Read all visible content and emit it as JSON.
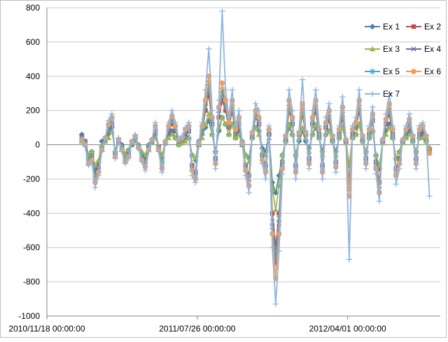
{
  "chart_data": {
    "type": "line",
    "title": "",
    "xlabel": "",
    "ylabel": "",
    "ylim": [
      -1000,
      800
    ],
    "yticks": [
      800,
      600,
      400,
      200,
      0,
      -200,
      -400,
      -600,
      -800,
      -1000
    ],
    "xlim": [
      "2010/11/18 00:00:00",
      "2012/09/02 00:00:00"
    ],
    "xticks": [
      "2010/11/18 00:00:00",
      "2011/07/26 00:00:00",
      "2012/04/01 00:00:00"
    ],
    "grid": "horizontal",
    "legend_position": "top-right",
    "x_start": "2011/01/15 00:00:00",
    "x_end": "2012/08/15 00:00:00",
    "series": [
      {
        "name": "Ex 1",
        "color": "#4a7ebb",
        "marker": "diamond",
        "values": [
          60,
          20,
          -60,
          -40,
          -150,
          -100,
          20,
          40,
          60,
          100,
          -40,
          30,
          0,
          -60,
          -30,
          20,
          40,
          0,
          -50,
          -80,
          0,
          30,
          60,
          -20,
          -80,
          20,
          60,
          80,
          40,
          0,
          10,
          30,
          40,
          -60,
          -90,
          20,
          60,
          100,
          140,
          60,
          -40,
          80,
          160,
          120,
          60,
          120,
          40,
          80,
          20,
          -60,
          -80,
          40,
          100,
          80,
          -20,
          -40,
          60,
          -220,
          -280,
          -180,
          -60,
          20,
          100,
          60,
          -60,
          20,
          80,
          20,
          -20,
          60,
          100,
          40,
          -40,
          60,
          80,
          20,
          -40,
          40,
          100,
          20,
          -120,
          40,
          60,
          120,
          20,
          -40,
          40,
          80,
          -60,
          -140,
          20,
          80,
          120,
          40,
          -80,
          -40,
          20,
          40,
          80,
          20,
          -40,
          40,
          60,
          20,
          -20
        ]
      },
      {
        "name": "Ex 2",
        "color": "#be4b48",
        "marker": "square",
        "values": [
          40,
          10,
          -80,
          -60,
          -180,
          -130,
          -20,
          20,
          80,
          120,
          -60,
          20,
          -20,
          -80,
          -50,
          0,
          30,
          -10,
          -70,
          -100,
          -10,
          20,
          80,
          -10,
          -100,
          10,
          80,
          120,
          80,
          20,
          30,
          60,
          80,
          -120,
          -160,
          0,
          80,
          200,
          300,
          120,
          -80,
          160,
          260,
          200,
          100,
          200,
          60,
          120,
          0,
          -120,
          -180,
          60,
          160,
          120,
          -60,
          -120,
          60,
          -400,
          -600,
          -400,
          -100,
          40,
          200,
          120,
          -120,
          60,
          180,
          60,
          -80,
          120,
          200,
          60,
          -120,
          100,
          140,
          40,
          -100,
          60,
          160,
          20,
          -220,
          60,
          100,
          200,
          40,
          -80,
          60,
          140,
          -100,
          -220,
          20,
          120,
          180,
          60,
          -140,
          -80,
          20,
          60,
          120,
          40,
          -80,
          60,
          80,
          40,
          -40
        ]
      },
      {
        "name": "Ex 3",
        "color": "#98b954",
        "marker": "triangle",
        "values": [
          20,
          0,
          -60,
          -40,
          -120,
          -90,
          0,
          20,
          40,
          80,
          -30,
          10,
          -10,
          -50,
          -30,
          10,
          20,
          0,
          -40,
          -60,
          0,
          10,
          40,
          -10,
          -60,
          10,
          40,
          60,
          40,
          0,
          10,
          20,
          40,
          -60,
          -80,
          0,
          40,
          120,
          180,
          60,
          -40,
          100,
          160,
          120,
          60,
          120,
          40,
          60,
          0,
          -60,
          -100,
          40,
          100,
          60,
          -40,
          -60,
          40,
          -260,
          -380,
          -240,
          -60,
          20,
          120,
          60,
          -60,
          40,
          100,
          40,
          -40,
          60,
          120,
          40,
          -60,
          60,
          80,
          20,
          -60,
          40,
          100,
          10,
          -120,
          40,
          60,
          120,
          20,
          -40,
          40,
          80,
          -60,
          -120,
          10,
          60,
          100,
          40,
          -80,
          -40,
          10,
          40,
          60,
          20,
          -40,
          40,
          40,
          20,
          -20
        ]
      },
      {
        "name": "Ex 4",
        "color": "#7d60a0",
        "marker": "x",
        "values": [
          50,
          20,
          -100,
          -80,
          -200,
          -150,
          -30,
          30,
          100,
          140,
          -60,
          30,
          -20,
          -90,
          -60,
          10,
          40,
          -10,
          -80,
          -120,
          -20,
          20,
          100,
          -20,
          -120,
          10,
          100,
          160,
          100,
          20,
          40,
          80,
          100,
          -140,
          -180,
          0,
          100,
          240,
          360,
          140,
          -100,
          200,
          320,
          240,
          120,
          240,
          80,
          140,
          0,
          -140,
          -220,
          60,
          180,
          140,
          -80,
          -140,
          80,
          -480,
          -700,
          -460,
          -120,
          40,
          240,
          140,
          -140,
          60,
          220,
          60,
          -100,
          140,
          240,
          80,
          -140,
          120,
          180,
          40,
          -120,
          80,
          200,
          20,
          -260,
          80,
          120,
          240,
          40,
          -100,
          80,
          160,
          -120,
          -260,
          20,
          140,
          220,
          80,
          -160,
          -100,
          20,
          80,
          140,
          40,
          -100,
          80,
          100,
          40,
          -40
        ]
      },
      {
        "name": "Ex 5",
        "color": "#46aac5",
        "marker": "star",
        "values": [
          40,
          10,
          -90,
          -70,
          -190,
          -140,
          -20,
          30,
          90,
          130,
          -60,
          20,
          -20,
          -80,
          -50,
          10,
          30,
          -10,
          -70,
          -110,
          -10,
          20,
          90,
          -20,
          -110,
          10,
          90,
          140,
          90,
          20,
          30,
          70,
          90,
          -130,
          -170,
          0,
          90,
          220,
          340,
          130,
          -90,
          180,
          300,
          220,
          110,
          220,
          70,
          130,
          0,
          -130,
          -200,
          60,
          170,
          130,
          -70,
          -130,
          70,
          -450,
          -660,
          -430,
          -110,
          40,
          220,
          130,
          -130,
          60,
          200,
          60,
          -90,
          130,
          220,
          70,
          -130,
          110,
          160,
          40,
          -110,
          70,
          180,
          20,
          -240,
          70,
          110,
          220,
          40,
          -90,
          70,
          150,
          -110,
          -240,
          20,
          130,
          200,
          70,
          -150,
          -90,
          20,
          70,
          130,
          40,
          -90,
          70,
          90,
          40,
          -40
        ]
      },
      {
        "name": "Ex 6",
        "color": "#f59d56",
        "marker": "circle",
        "values": [
          30,
          0,
          -110,
          -90,
          -220,
          -160,
          -30,
          40,
          120,
          160,
          -70,
          30,
          -30,
          -100,
          -70,
          20,
          50,
          -20,
          -90,
          -130,
          -30,
          30,
          110,
          -30,
          -140,
          20,
          110,
          170,
          110,
          30,
          40,
          90,
          110,
          -150,
          -200,
          10,
          110,
          260,
          400,
          160,
          -110,
          220,
          360,
          260,
          130,
          260,
          90,
          160,
          10,
          -150,
          -240,
          70,
          200,
          160,
          -90,
          -160,
          90,
          -520,
          -780,
          -520,
          -140,
          50,
          260,
          160,
          -160,
          70,
          240,
          70,
          -110,
          160,
          260,
          90,
          -160,
          130,
          200,
          50,
          -130,
          90,
          220,
          30,
          -300,
          90,
          130,
          260,
          50,
          -110,
          90,
          180,
          -140,
          -280,
          30,
          150,
          240,
          90,
          -180,
          -110,
          30,
          90,
          150,
          50,
          -110,
          90,
          110,
          50,
          -50
        ]
      },
      {
        "name": "Ex 7",
        "color": "#8eb4e3",
        "marker": "plus",
        "values": [
          20,
          -10,
          -120,
          -100,
          -250,
          -180,
          -40,
          40,
          140,
          180,
          -80,
          40,
          -40,
          -110,
          -80,
          20,
          60,
          -20,
          -100,
          -150,
          -40,
          30,
          130,
          -40,
          -160,
          20,
          130,
          200,
          130,
          30,
          50,
          100,
          130,
          -180,
          -220,
          10,
          130,
          320,
          560,
          200,
          -140,
          260,
          780,
          320,
          160,
          320,
          110,
          200,
          10,
          -180,
          -280,
          80,
          240,
          200,
          -110,
          -200,
          110,
          -600,
          -930,
          -620,
          -170,
          60,
          320,
          200,
          -200,
          80,
          380,
          80,
          -140,
          200,
          320,
          110,
          -200,
          160,
          240,
          60,
          -160,
          110,
          280,
          30,
          -670,
          110,
          160,
          320,
          60,
          -140,
          110,
          220,
          -170,
          -330,
          30,
          180,
          300,
          110,
          -230,
          -140,
          30,
          110,
          180,
          60,
          -140,
          110,
          130,
          60,
          -300
        ]
      }
    ]
  }
}
